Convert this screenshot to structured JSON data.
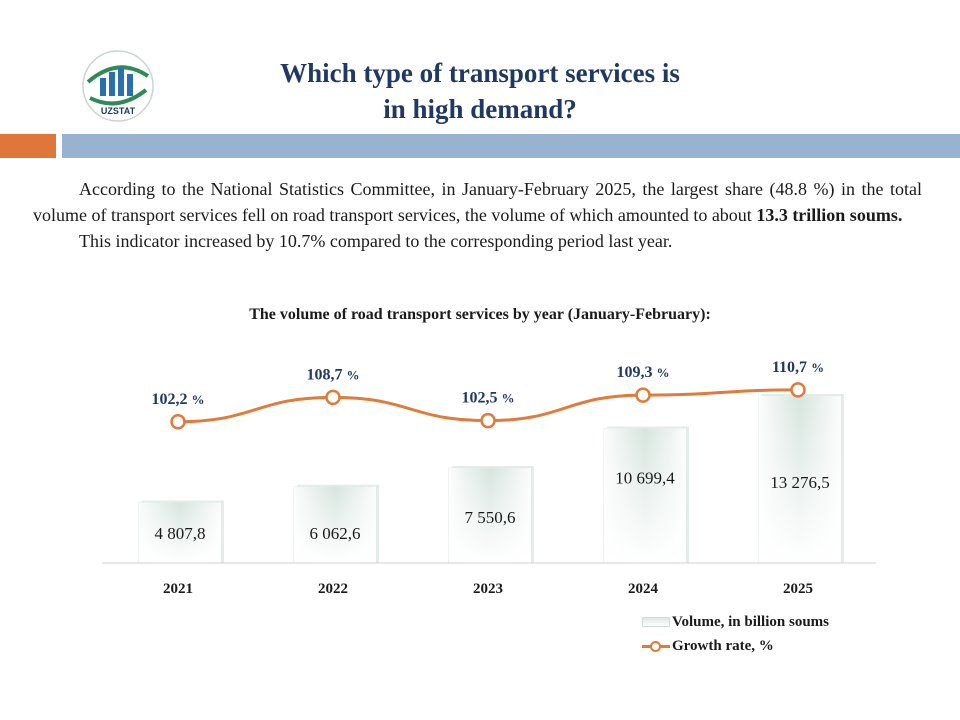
{
  "logo": {
    "text": "UZSTAT",
    "colors": {
      "ring": "#2e8b57",
      "bars": "#2a6fb0",
      "text": "#1f3864"
    }
  },
  "header": {
    "title": "Which type of transport services is\nin high demand?",
    "accent_colors": {
      "orange": "#e0773a",
      "blue": "#97b3cf",
      "title": "#1f3864"
    }
  },
  "intro": {
    "p1_a": "According to the National Statistics Committee, in January-February 2025, the largest share (48.8 %) in the total volume of transport services fell on road transport services, the volume of which amounted to about ",
    "p1_bold": "13.3 trillion  soums.",
    "p2": "This indicator increased by 10.7% compared to the corresponding  period last year."
  },
  "chart_data": {
    "type": "bar",
    "title": "The volume  of road transport  services by year (January-February):",
    "categories": [
      "2021",
      "2022",
      "2023",
      "2024",
      "2025"
    ],
    "series": [
      {
        "name": "Volume, in billion soums",
        "type": "bar",
        "values": [
          4807.8,
          6062.6,
          7550.6,
          10699.4,
          13276.5
        ],
        "labels": [
          "4 807,8",
          "6 062,6",
          "7 550,6",
          "10 699,4",
          "13 276,5"
        ]
      },
      {
        "name": "Growth rate, %",
        "type": "line",
        "values": [
          102.2,
          108.7,
          102.5,
          109.3,
          110.7
        ],
        "labels": [
          "102,2",
          "108,7",
          "102,5",
          "109,3",
          "110,7"
        ],
        "unit": "%"
      }
    ],
    "legend_position": "bottom-right",
    "colors": {
      "bar_top": "#dde8e3",
      "bar_bottom": "#ffffff",
      "line": "#e07b39"
    }
  }
}
